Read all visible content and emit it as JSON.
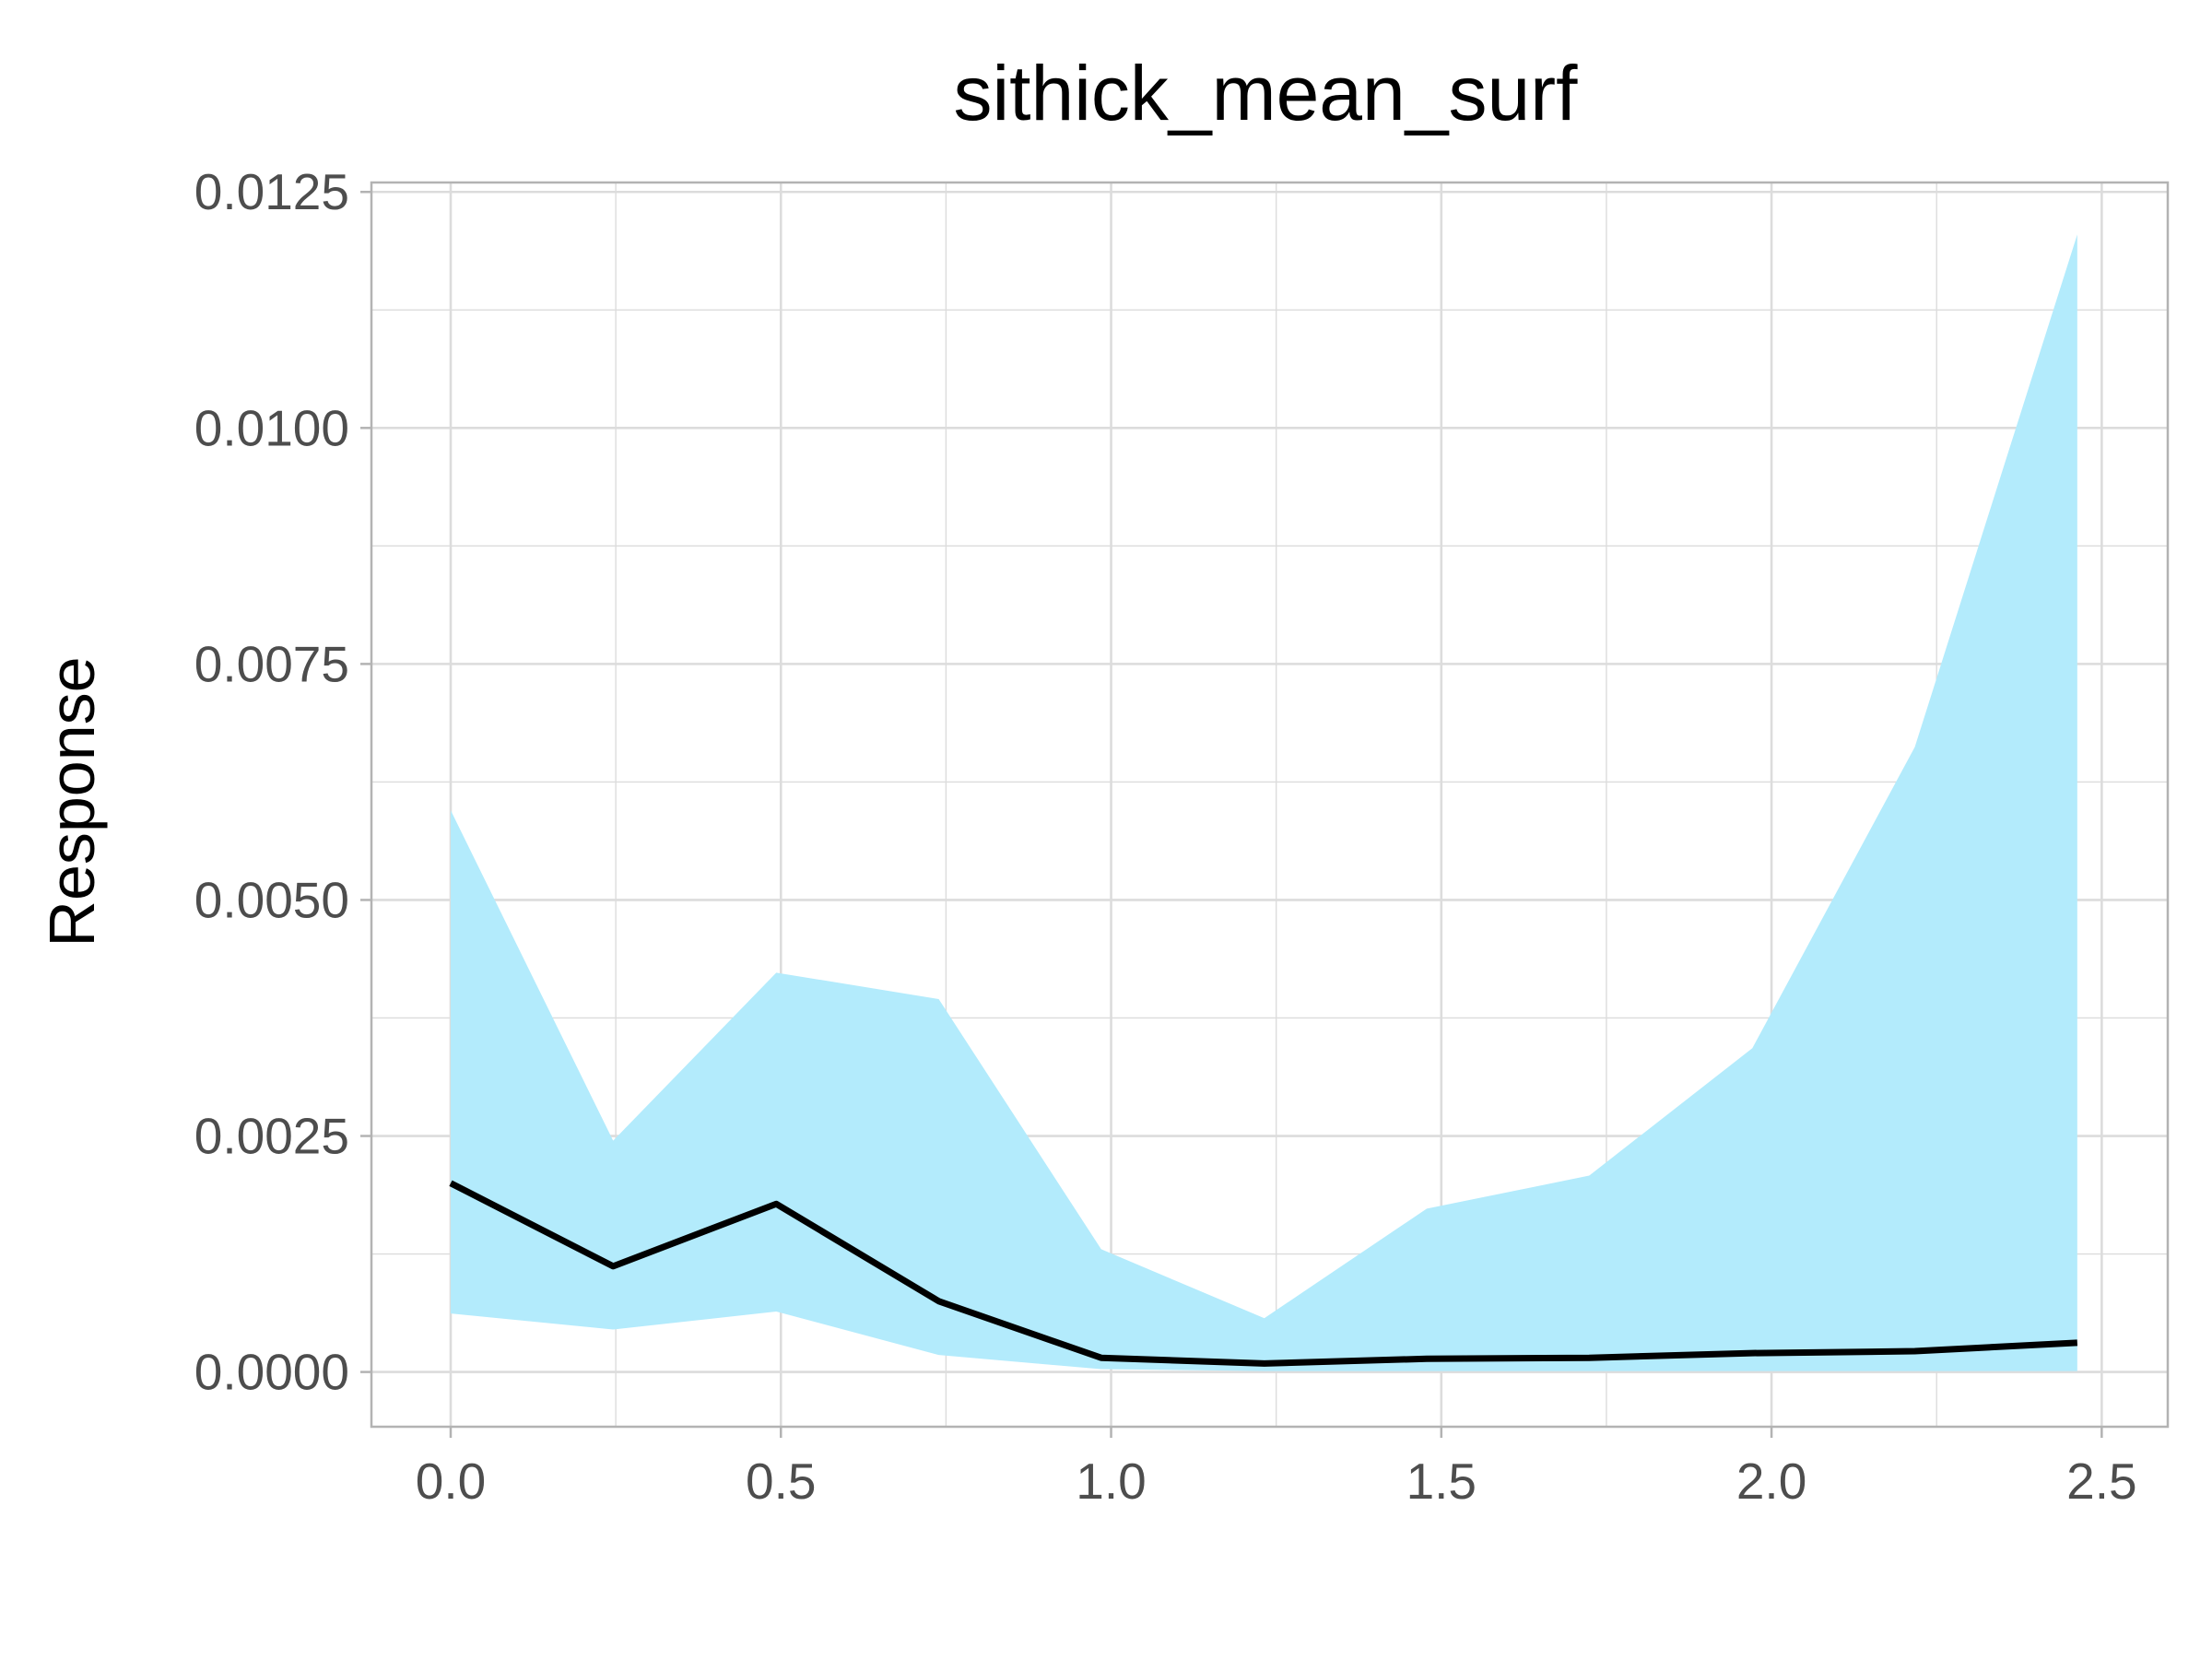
{
  "chart_data": {
    "type": "line",
    "title": "sithick_mean_surf",
    "xlabel": "",
    "ylabel": "Response",
    "xlim": [
      -0.12,
      2.6
    ],
    "ylim": [
      -0.00058,
      0.0126
    ],
    "x_ticks": [
      "0.0",
      "0.5",
      "1.0",
      "1.5",
      "2.0",
      "2.5"
    ],
    "x_tick_values": [
      0,
      0.5,
      1.0,
      1.5,
      2.0,
      2.5
    ],
    "y_ticks": [
      "0.0000",
      "0.0025",
      "0.0050",
      "0.0075",
      "0.0100",
      "0.0125"
    ],
    "y_tick_values": [
      0,
      0.0025,
      0.005,
      0.0075,
      0.01,
      0.0125
    ],
    "grid": true,
    "legend": "none",
    "colors": {
      "band": "#b3ebfc",
      "line": "#000000",
      "grid": "#dcdcdc",
      "border": "#b3b3b3"
    },
    "x": [
      0.0,
      0.246,
      0.493,
      0.739,
      0.985,
      1.232,
      1.478,
      1.724,
      1.971,
      2.217,
      2.463
    ],
    "series": [
      {
        "kind": "line",
        "values": [
          0.002,
          0.00112,
          0.00178,
          0.00075,
          0.00015,
          9e-05,
          0.00014,
          0.00015,
          0.0002,
          0.00022,
          0.00031
        ]
      },
      {
        "kind": "band_lower",
        "values": [
          0.00062,
          0.00045,
          0.00064,
          0.00018,
          3e-05,
          1e-05,
          1e-05,
          1e-05,
          1e-05,
          1e-05,
          1e-05
        ]
      },
      {
        "kind": "band_upper",
        "values": [
          0.00595,
          0.00245,
          0.00423,
          0.00395,
          0.0013,
          0.00057,
          0.00173,
          0.00208,
          0.00343,
          0.00662,
          0.01205
        ]
      }
    ]
  }
}
